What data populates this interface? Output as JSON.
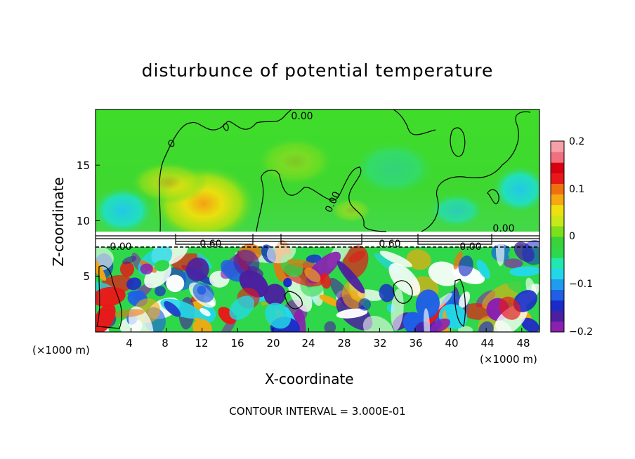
{
  "chart_data": {
    "type": "heatmap",
    "title": "disturbunce of potential temperature",
    "xlabel": "X-coordinate",
    "ylabel": "Z-coordinate",
    "x_unit_left": "(×1000 m)",
    "x_unit_right": "(×1000 m)",
    "xlim": [
      0,
      50
    ],
    "ylim": [
      0,
      20
    ],
    "xticks": [
      "4",
      "8",
      "12",
      "16",
      "20",
      "24",
      "28",
      "32",
      "36",
      "40",
      "44",
      "48"
    ],
    "yticks": [
      "5",
      "10",
      "15"
    ],
    "colorbar": {
      "range": [
        -0.2,
        0.2
      ],
      "ticks": [
        "0.2",
        "0.1",
        "0",
        "−0.1",
        "−0.2"
      ],
      "colors": [
        "#8b1fb0",
        "#4b1fa0",
        "#1a2bc8",
        "#1f5fe6",
        "#1f9bf0",
        "#22d8e8",
        "#22e8b0",
        "#2ed84a",
        "#38d23a",
        "#7ee01a",
        "#c8e81a",
        "#f0e010",
        "#f5a80f",
        "#f07010",
        "#e81818",
        "#d80010",
        "#f07080",
        "#f8a0a8"
      ]
    },
    "contour_labels": [
      "0.00",
      "0.00",
      "0.60",
      "0.60",
      "0.00",
      "0.00",
      "0.00"
    ],
    "contour_interval_text": "CONTOUR INTERVAL = 3.000E-01"
  }
}
